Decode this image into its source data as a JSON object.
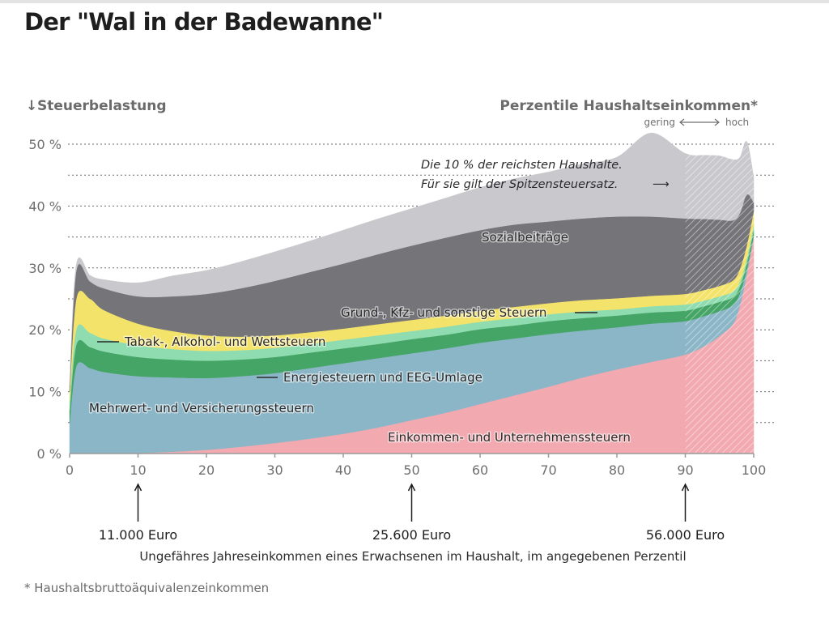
{
  "title": "Der \"Wal in der Badewanne\"",
  "footnote": "* Haushaltsbruttoäquivalenzeinkommen",
  "chart_data": {
    "type": "area",
    "stacked": true,
    "title": "Der \"Wal in der Badewanne\"",
    "ylabel": "Steuerbelastung",
    "y_arrow": "↓",
    "xlabel": "Perzentile Haushaltseinkommen*",
    "xlabel_scale_low": "gering",
    "xlabel_scale_high": "hoch",
    "xlim": [
      0,
      100
    ],
    "ylim": [
      0,
      50
    ],
    "y_ticks": [
      0,
      10,
      20,
      30,
      40,
      50
    ],
    "y_tick_labels": [
      "0 %",
      "10 %",
      "20 %",
      "30 %",
      "40 %",
      "50 %"
    ],
    "x_ticks": [
      0,
      10,
      20,
      30,
      40,
      50,
      60,
      70,
      80,
      90,
      100
    ],
    "grid": "horizontal dotted, every 5 %",
    "x": [
      0,
      1,
      3,
      5,
      10,
      15,
      20,
      25,
      30,
      35,
      40,
      45,
      50,
      55,
      60,
      65,
      70,
      75,
      80,
      85,
      90,
      93,
      95,
      97,
      98,
      99,
      100
    ],
    "series": [
      {
        "name": "Einkommen- und Unternehmenssteuern",
        "color": "#f2a9b0",
        "values": [
          0,
          0,
          0,
          0,
          0.1,
          0.3,
          0.6,
          1.1,
          1.7,
          2.4,
          3.2,
          4.2,
          5.4,
          6.6,
          8.0,
          9.4,
          10.8,
          12.3,
          13.6,
          14.8,
          16.0,
          17.5,
          19.0,
          21.0,
          24.0,
          29.0,
          35.0
        ]
      },
      {
        "name": "Mehrwert- und Versicherungssteuern",
        "color": "#8bb6c7",
        "values": [
          5,
          14.2,
          13.8,
          13.2,
          12.4,
          12.0,
          11.6,
          11.4,
          11.3,
          11.4,
          11.4,
          11.2,
          10.8,
          10.4,
          9.9,
          9.2,
          8.5,
          7.6,
          6.8,
          6.2,
          5.4,
          4.8,
          4.0,
          3.0,
          2.0,
          0.8,
          0.3
        ]
      },
      {
        "name": "Energiesteuern und EEG-Umlage",
        "color": "#45a566",
        "values": [
          2,
          3.5,
          3.4,
          3.3,
          3.1,
          2.9,
          2.8,
          2.7,
          2.6,
          2.5,
          2.4,
          2.3,
          2.3,
          2.2,
          2.2,
          2.1,
          2.1,
          2.0,
          1.9,
          1.8,
          1.7,
          1.6,
          1.5,
          1.3,
          1.1,
          1.0,
          0.9
        ]
      },
      {
        "name": "Tabak-, Alkohol- und Wettsteuern",
        "color": "#8fdcb0",
        "values": [
          1.5,
          2.5,
          2.3,
          2.1,
          1.9,
          1.7,
          1.6,
          1.5,
          1.5,
          1.4,
          1.4,
          1.4,
          1.3,
          1.3,
          1.2,
          1.2,
          1.1,
          1.1,
          1.0,
          1.0,
          1.0,
          0.9,
          0.9,
          0.9,
          0.8,
          0.8,
          0.8
        ]
      },
      {
        "name": "Grund-, Kfz- und sonstige Steuern",
        "color": "#f4e36a",
        "values": [
          1.5,
          5.0,
          5.5,
          4.6,
          3.5,
          2.9,
          2.5,
          2.2,
          2.0,
          1.9,
          1.8,
          1.8,
          1.8,
          1.8,
          1.8,
          1.8,
          1.8,
          1.8,
          1.8,
          1.7,
          1.7,
          1.7,
          1.7,
          1.8,
          2.0,
          2.1,
          2.2
        ]
      },
      {
        "name": "Sozialbeiträge",
        "color": "#747479",
        "values": [
          1,
          4.5,
          2.8,
          3.5,
          4.4,
          5.6,
          6.7,
          7.8,
          8.8,
          9.7,
          10.5,
          11.3,
          12.0,
          12.6,
          13.0,
          13.3,
          13.2,
          13.2,
          13.2,
          12.8,
          12.2,
          11.4,
          10.7,
          9.7,
          9.0,
          8.2,
          1.4
        ]
      },
      {
        "name": "",
        "color": "#c9c8cd",
        "values": [
          0.5,
          1.0,
          1.0,
          1.4,
          2.2,
          3.3,
          3.8,
          4.3,
          4.7,
          5.0,
          5.4,
          5.7,
          6.0,
          6.4,
          6.9,
          7.4,
          8.0,
          8.8,
          9.6,
          13.5,
          10.5,
          10.3,
          10.3,
          9.8,
          9.0,
          8.5,
          4.0
        ]
      }
    ],
    "annotations": {
      "reichste": "Die 10 % der reichsten Haushalte.",
      "spitzensteuer": "Für sie gilt der Spitzensteuersatz.",
      "arrow_right": "⟶",
      "top10_from": 90
    },
    "markers": [
      {
        "percentile": 10,
        "label": "11.000 Euro"
      },
      {
        "percentile": 50,
        "label": "25.600 Euro"
      },
      {
        "percentile": 90,
        "label": "56.000 Euro"
      }
    ],
    "x_description": "Ungefähres Jahreseinkommen eines Erwachsenen im Haushalt, im angegebenen Perzentil"
  }
}
